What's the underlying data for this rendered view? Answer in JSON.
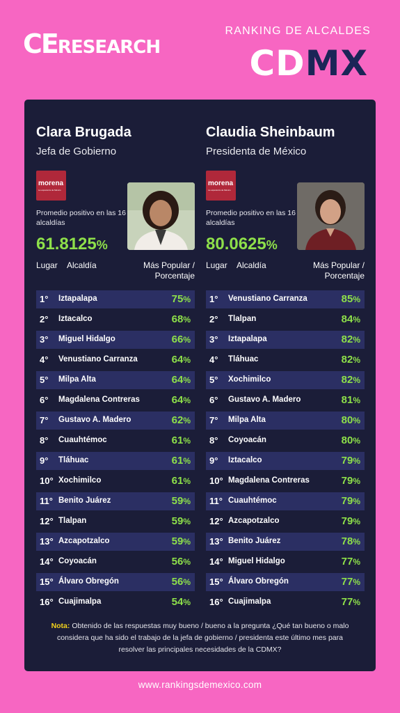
{
  "brand": {
    "logo_ce": "CE",
    "logo_research": "RESEARCH"
  },
  "header": {
    "title": "RANKING DE ALCALDES",
    "cd": "CD",
    "mx": "MX"
  },
  "left": {
    "name": "Clara Brugada",
    "role": "Jefa de Gobierno",
    "party": "morena",
    "party_sub": "La esperanza de México",
    "avg_label": "Promedio positivo en las 16 alcaldías",
    "avg_value": "61.8125",
    "avg_pct": "%",
    "hdr_lugar": "Lugar",
    "hdr_alcaldia": "Alcaldía",
    "hdr_pop_1": "Más Popular /",
    "hdr_pop_2": "Porcentaje",
    "rows": [
      {
        "pos": "1°",
        "name": "Iztapalapa",
        "val": "75"
      },
      {
        "pos": "2°",
        "name": "Iztacalco",
        "val": "68"
      },
      {
        "pos": "3°",
        "name": "Miguel Hidalgo",
        "val": "66"
      },
      {
        "pos": "4°",
        "name": "Venustiano Carranza",
        "val": "64"
      },
      {
        "pos": "5°",
        "name": "Milpa Alta",
        "val": "64"
      },
      {
        "pos": "6°",
        "name": "Magdalena Contreras",
        "val": "64"
      },
      {
        "pos": "7°",
        "name": "Gustavo A. Madero",
        "val": "62"
      },
      {
        "pos": "8°",
        "name": "Cuauhtémoc",
        "val": "61"
      },
      {
        "pos": "9°",
        "name": "Tláhuac",
        "val": "61"
      },
      {
        "pos": "10°",
        "name": "Xochimilco",
        "val": "61"
      },
      {
        "pos": "11°",
        "name": "Benito Juárez",
        "val": "59"
      },
      {
        "pos": "12°",
        "name": "Tlalpan",
        "val": "59"
      },
      {
        "pos": "13°",
        "name": "Azcapotzalco",
        "val": "59"
      },
      {
        "pos": "14°",
        "name": "Coyoacán",
        "val": "56"
      },
      {
        "pos": "15°",
        "name": "Álvaro Obregón",
        "val": "56"
      },
      {
        "pos": "16°",
        "name": "Cuajimalpa",
        "val": "54"
      }
    ]
  },
  "right": {
    "name": "Claudia Sheinbaum",
    "role": "Presidenta de México",
    "party": "morena",
    "party_sub": "La esperanza de México",
    "avg_label": "Promedio positivo en las 16 alcaldías",
    "avg_value": "80.0625",
    "avg_pct": "%",
    "hdr_lugar": "Lugar",
    "hdr_alcaldia": "Alcaldía",
    "hdr_pop_1": "Más Popular /",
    "hdr_pop_2": "Porcentaje",
    "rows": [
      {
        "pos": "1°",
        "name": "Venustiano Carranza",
        "val": "85"
      },
      {
        "pos": "2°",
        "name": "Tlalpan",
        "val": "84"
      },
      {
        "pos": "3°",
        "name": "Iztapalapa",
        "val": "82"
      },
      {
        "pos": "4°",
        "name": "Tláhuac",
        "val": "82"
      },
      {
        "pos": "5°",
        "name": "Xochimilco",
        "val": "82"
      },
      {
        "pos": "6°",
        "name": "Gustavo A. Madero",
        "val": "81"
      },
      {
        "pos": "7°",
        "name": "Milpa Alta",
        "val": "80"
      },
      {
        "pos": "8°",
        "name": "Coyoacán",
        "val": "80"
      },
      {
        "pos": "9°",
        "name": "Iztacalco",
        "val": "79"
      },
      {
        "pos": "10°",
        "name": "Magdalena Contreras",
        "val": "79"
      },
      {
        "pos": "11°",
        "name": "Cuauhtémoc",
        "val": "79"
      },
      {
        "pos": "12°",
        "name": "Azcapotzalco",
        "val": "79"
      },
      {
        "pos": "13°",
        "name": "Benito Juárez",
        "val": "78"
      },
      {
        "pos": "14°",
        "name": "Miguel Hidalgo",
        "val": "77"
      },
      {
        "pos": "15°",
        "name": "Álvaro Obregón",
        "val": "77"
      },
      {
        "pos": "16°",
        "name": "Cuajimalpa",
        "val": "77"
      }
    ]
  },
  "note": {
    "label": "Nota:",
    "text": " Obtenido de las respuestas muy bueno / bueno a la pregunta ¿Qué tan bueno o malo considera que ha sido el trabajo de la jefa de gobierno / presidenta este último mes para resolver las principales necesidades de la CDMX?"
  },
  "footer": {
    "website": "www.rankingsdemexico.com"
  },
  "colors": {
    "background": "#f766c2",
    "panel": "#1b1d38",
    "row_alt": "#2b2f63",
    "accent_green": "#8ee04a",
    "cdmx_blue": "#1b2557",
    "party_red": "#b0283a",
    "note_yellow": "#f2d21b"
  }
}
